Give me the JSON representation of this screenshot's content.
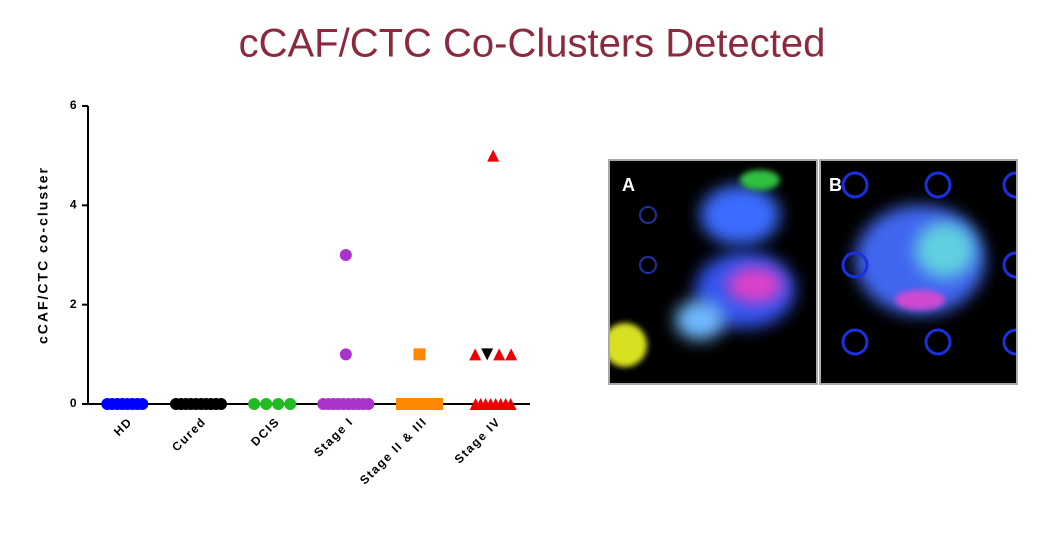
{
  "chart_data": {
    "type": "scatter",
    "title": "cCAF/CTC Co-Clusters Detected",
    "ylabel": "cCAF/CTC co-cluster",
    "ylim": [
      0,
      6
    ],
    "yticks": [
      0,
      2,
      4,
      6
    ],
    "series": [
      {
        "name": "HD",
        "color": "#0000ff",
        "marker": "circle",
        "values": [
          0,
          0,
          0,
          0,
          0,
          0,
          0,
          0
        ]
      },
      {
        "name": "Cured",
        "color": "#000000",
        "marker": "circle",
        "values": [
          0,
          0,
          0,
          0,
          0,
          0,
          0,
          0,
          0,
          0
        ]
      },
      {
        "name": "DCIS",
        "color": "#22bb22",
        "marker": "circle",
        "values": [
          0,
          0,
          0,
          0
        ]
      },
      {
        "name": "Stage I",
        "color": "#aa33cc",
        "marker": "circle",
        "values": [
          0,
          0,
          0,
          0,
          0,
          0,
          0,
          0,
          0,
          0,
          1,
          3
        ]
      },
      {
        "name": "Stage II & III",
        "color": "#ff8800",
        "marker": "square",
        "values": [
          0,
          0,
          0,
          0,
          0,
          0,
          0,
          0,
          1
        ]
      },
      {
        "name": "Stage IV",
        "color": "#ee0000",
        "marker": "triangle-up",
        "values": [
          0,
          0,
          0,
          0,
          0,
          0,
          0,
          0,
          1,
          1,
          1,
          1,
          5
        ],
        "point_colors": [
          "#ee0000",
          "#ee0000",
          "#ee0000",
          "#ee0000",
          "#ee0000",
          "#ee0000",
          "#ee0000",
          "#ee0000",
          "#ee0000",
          "#000000",
          "#ee0000",
          "#ee0000",
          "#ee0000"
        ],
        "point_markers": [
          "triangle-up",
          "triangle-up",
          "triangle-up",
          "triangle-up",
          "triangle-up",
          "triangle-up",
          "triangle-up",
          "triangle-up",
          "triangle-up",
          "triangle-down",
          "triangle-up",
          "triangle-up",
          "triangle-up"
        ]
      }
    ]
  },
  "panels": [
    {
      "label": "A"
    },
    {
      "label": "B"
    }
  ]
}
